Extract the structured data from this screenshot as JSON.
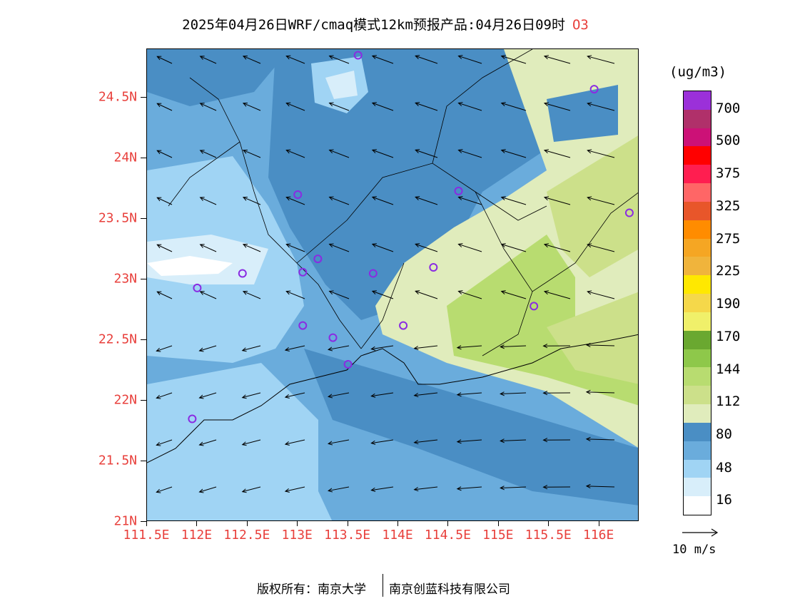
{
  "title": {
    "text": "2025年04月26日WRF/cmaq模式12km预报产品:04月26日09时",
    "variable": "O3"
  },
  "y_axis": {
    "labels": [
      "24.5N",
      "24N",
      "23.5N",
      "23N",
      "22.5N",
      "22N",
      "21.5N",
      "21N"
    ]
  },
  "x_axis": {
    "labels": [
      "111.5E",
      "112E",
      "112.5E",
      "113E",
      "113.5E",
      "114E",
      "114.5E",
      "115E",
      "115.5E",
      "116E"
    ]
  },
  "colorbar": {
    "unit": "(ug/m3)",
    "labels": [
      "700",
      "500",
      "375",
      "325",
      "275",
      "225",
      "190",
      "170",
      "144",
      "112",
      "80",
      "48",
      "16"
    ],
    "colors": [
      "#9b30d9",
      "#b0306a",
      "#cc1177",
      "#ff0000",
      "#ff1e50",
      "#ff6666",
      "#e8562a",
      "#ff8c00",
      "#f5a623",
      "#f0b43c",
      "#ffe800",
      "#f5d84a",
      "#f0f06a",
      "#6aa830",
      "#8ec84a",
      "#b8dc70",
      "#cce08a",
      "#e0ecbc",
      "#4a8ec4",
      "#6aacdc",
      "#a0d4f4",
      "#d8eefa",
      "#ffffff"
    ]
  },
  "wind": {
    "reference_label": "10 m/s"
  },
  "footer": {
    "left": "版权所有：南京大学",
    "right": "南京创蓝科技有限公司"
  },
  "stations": [
    {
      "lon": 113.6,
      "lat": 24.85
    },
    {
      "lon": 115.95,
      "lat": 24.57
    },
    {
      "lon": 113.0,
      "lat": 23.7
    },
    {
      "lon": 114.6,
      "lat": 23.73
    },
    {
      "lon": 116.3,
      "lat": 23.55
    },
    {
      "lon": 113.2,
      "lat": 23.17
    },
    {
      "lon": 112.45,
      "lat": 23.05
    },
    {
      "lon": 113.05,
      "lat": 23.06
    },
    {
      "lon": 113.75,
      "lat": 23.05
    },
    {
      "lon": 114.35,
      "lat": 23.1
    },
    {
      "lon": 112.0,
      "lat": 22.93
    },
    {
      "lon": 115.35,
      "lat": 22.78
    },
    {
      "lon": 113.05,
      "lat": 22.62
    },
    {
      "lon": 114.05,
      "lat": 22.62
    },
    {
      "lon": 113.35,
      "lat": 22.52
    },
    {
      "lon": 113.5,
      "lat": 22.3
    },
    {
      "lon": 111.95,
      "lat": 21.85
    }
  ],
  "map_data": {
    "lon_range": [
      111.5,
      116.4
    ],
    "lat_range": [
      21.0,
      24.9
    ]
  }
}
